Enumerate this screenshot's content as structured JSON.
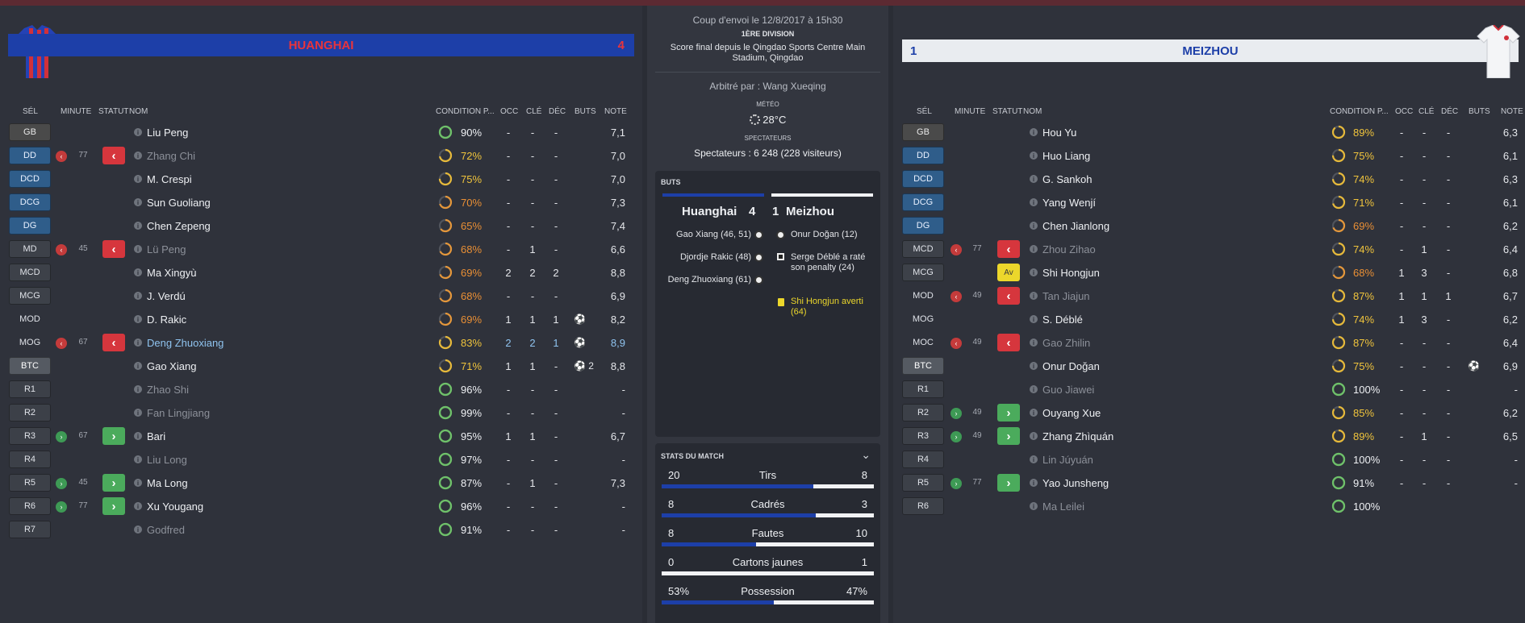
{
  "colors": {
    "home": "#1d3fa8",
    "home_text": "#e8343c",
    "away_bg": "#e9ecf0",
    "away_text": "#1d3fa8"
  },
  "home": {
    "name": "HUANGHAI",
    "score": "4",
    "headers": {
      "sel": "SÉL",
      "minute": "MINUTE",
      "statut": "STATUT",
      "nom": "NOM",
      "cond": "CONDITION P...",
      "occ": "OCC",
      "cle": "CLÉ",
      "dec": "DÉC",
      "buts": "BUTS",
      "note": "NOTE"
    },
    "players": [
      {
        "pos": "GB",
        "cls": "gk",
        "name": "Liu Peng",
        "cond": "90%",
        "cc": "w",
        "occ": "-",
        "cle": "-",
        "dec": "-",
        "buts": "",
        "note": "7,1"
      },
      {
        "pos": "DD",
        "cls": "def",
        "mark": "out",
        "minute": "77",
        "badge": "out",
        "name": "Zhang Chi",
        "nc": "dim",
        "cond": "72%",
        "cc": "y",
        "occ": "-",
        "cle": "-",
        "dec": "-",
        "buts": "",
        "note": "7,0"
      },
      {
        "pos": "DCD",
        "cls": "def",
        "name": "M. Crespi",
        "cond": "75%",
        "cc": "y",
        "occ": "-",
        "cle": "-",
        "dec": "-",
        "buts": "",
        "note": "7,0"
      },
      {
        "pos": "DCG",
        "cls": "def",
        "name": "Sun Guoliang",
        "cond": "70%",
        "cc": "o",
        "occ": "-",
        "cle": "-",
        "dec": "-",
        "buts": "",
        "note": "7,3"
      },
      {
        "pos": "DG",
        "cls": "def",
        "name": "Chen Zepeng",
        "cond": "65%",
        "cc": "o",
        "occ": "-",
        "cle": "-",
        "dec": "-",
        "buts": "",
        "note": "7,4"
      },
      {
        "pos": "MD",
        "cls": "mid",
        "mark": "out",
        "minute": "45",
        "badge": "out",
        "name": "Lü Peng",
        "nc": "dim",
        "cond": "68%",
        "cc": "o",
        "occ": "-",
        "cle": "1",
        "dec": "-",
        "buts": "",
        "note": "6,6"
      },
      {
        "pos": "MCD",
        "cls": "mid",
        "name": "Ma Xingyù",
        "cond": "69%",
        "cc": "o",
        "occ": "2",
        "cle": "2",
        "dec": "2",
        "buts": "",
        "note": "8,8"
      },
      {
        "pos": "MCG",
        "cls": "mid",
        "name": "J. Verdú",
        "cond": "68%",
        "cc": "o",
        "occ": "-",
        "cle": "-",
        "dec": "-",
        "buts": "",
        "note": "6,9"
      },
      {
        "pos": "MOD",
        "cls": "mid none",
        "name": "D. Rakic",
        "cond": "69%",
        "cc": "o",
        "occ": "1",
        "cle": "1",
        "dec": "1",
        "buts": "⚽",
        "note": "8,2"
      },
      {
        "pos": "MOG",
        "cls": "mid none",
        "mark": "out",
        "minute": "67",
        "badge": "out",
        "name": "Deng Zhuoxiang",
        "nc": "hl",
        "cond": "83%",
        "cc": "y",
        "occ": "2",
        "cle": "2",
        "dec": "1",
        "buts": "⚽",
        "note": "8,9",
        "hl": true
      },
      {
        "pos": "BTC",
        "cls": "att",
        "name": "Gao Xiang",
        "cond": "71%",
        "cc": "y",
        "occ": "1",
        "cle": "1",
        "dec": "-",
        "buts": "⚽ 2",
        "note": "8,8"
      },
      {
        "pos": "R1",
        "cls": "sub",
        "name": "Zhao Shi",
        "nc": "dim",
        "cond": "96%",
        "cc": "w",
        "occ": "-",
        "cle": "-",
        "dec": "-",
        "buts": "",
        "note": "-"
      },
      {
        "pos": "R2",
        "cls": "sub",
        "name": "Fan Lingjiang",
        "nc": "dim",
        "cond": "99%",
        "cc": "w",
        "occ": "-",
        "cle": "-",
        "dec": "-",
        "buts": "",
        "note": "-"
      },
      {
        "pos": "R3",
        "cls": "sub",
        "mark": "in",
        "minute": "67",
        "badge": "in",
        "name": "Bari",
        "cond": "95%",
        "cc": "w",
        "occ": "1",
        "cle": "1",
        "dec": "-",
        "buts": "",
        "note": "6,7"
      },
      {
        "pos": "R4",
        "cls": "sub",
        "name": "Liu Long",
        "nc": "dim",
        "cond": "97%",
        "cc": "w",
        "occ": "-",
        "cle": "-",
        "dec": "-",
        "buts": "",
        "note": "-"
      },
      {
        "pos": "R5",
        "cls": "sub",
        "mark": "in",
        "minute": "45",
        "badge": "in",
        "name": "Ma Long",
        "cond": "87%",
        "cc": "w",
        "occ": "-",
        "cle": "1",
        "dec": "-",
        "buts": "",
        "note": "7,3"
      },
      {
        "pos": "R6",
        "cls": "sub",
        "mark": "in",
        "minute": "77",
        "badge": "in",
        "name": "Xu Yougang",
        "cond": "96%",
        "cc": "w",
        "occ": "-",
        "cle": "-",
        "dec": "-",
        "buts": "",
        "note": "-"
      },
      {
        "pos": "R7",
        "cls": "sub",
        "name": "Godfred",
        "nc": "dim",
        "cond": "91%",
        "cc": "w",
        "occ": "-",
        "cle": "-",
        "dec": "-",
        "buts": "",
        "note": "-"
      }
    ]
  },
  "away": {
    "name": "MEIZHOU",
    "score": "1",
    "headers": {
      "sel": "SÉL",
      "minute": "MINUTE",
      "statut": "STATUT",
      "nom": "NOM",
      "cond": "CONDITION P...",
      "occ": "OCC",
      "cle": "CLÉ",
      "dec": "DÉC",
      "buts": "BUTS",
      "note": "NOTE"
    },
    "players": [
      {
        "pos": "GB",
        "cls": "gk",
        "name": "Hou Yu",
        "cond": "89%",
        "cc": "y",
        "occ": "-",
        "cle": "-",
        "dec": "-",
        "buts": "",
        "note": "6,3"
      },
      {
        "pos": "DD",
        "cls": "def",
        "name": "Huo Liang",
        "cond": "75%",
        "cc": "y",
        "occ": "-",
        "cle": "-",
        "dec": "-",
        "buts": "",
        "note": "6,1"
      },
      {
        "pos": "DCD",
        "cls": "def",
        "name": "G. Sankoh",
        "cond": "74%",
        "cc": "y",
        "occ": "-",
        "cle": "-",
        "dec": "-",
        "buts": "",
        "note": "6,3"
      },
      {
        "pos": "DCG",
        "cls": "def",
        "name": "Yang Wenjí",
        "cond": "71%",
        "cc": "y",
        "occ": "-",
        "cle": "-",
        "dec": "-",
        "buts": "",
        "note": "6,1"
      },
      {
        "pos": "DG",
        "cls": "def",
        "name": "Chen Jianlong",
        "cond": "69%",
        "cc": "o",
        "occ": "-",
        "cle": "-",
        "dec": "-",
        "buts": "",
        "note": "6,2"
      },
      {
        "pos": "MCD",
        "cls": "mid",
        "mark": "out",
        "minute": "77",
        "badge": "out",
        "name": "Zhou Zihao",
        "nc": "dim",
        "cond": "74%",
        "cc": "y",
        "occ": "-",
        "cle": "1",
        "dec": "-",
        "buts": "",
        "note": "6,4"
      },
      {
        "pos": "MCG",
        "cls": "mid",
        "badge": "yc",
        "badge_text": "Av",
        "name": "Shi Hongjun",
        "cond": "68%",
        "cc": "o",
        "occ": "1",
        "cle": "3",
        "dec": "-",
        "buts": "",
        "note": "6,8"
      },
      {
        "pos": "MOD",
        "cls": "mid none",
        "mark": "out",
        "minute": "49",
        "badge": "out",
        "name": "Tan Jiajun",
        "nc": "dim",
        "cond": "87%",
        "cc": "y",
        "occ": "1",
        "cle": "1",
        "dec": "1",
        "buts": "",
        "note": "6,7"
      },
      {
        "pos": "MOG",
        "cls": "mid none",
        "name": "S. Déblé",
        "cond": "74%",
        "cc": "y",
        "occ": "1",
        "cle": "3",
        "dec": "-",
        "buts": "",
        "note": "6,2"
      },
      {
        "pos": "MOC",
        "cls": "mid none",
        "mark": "out",
        "minute": "49",
        "badge": "out",
        "name": "Gao Zhilin",
        "nc": "dim",
        "cond": "87%",
        "cc": "y",
        "occ": "-",
        "cle": "-",
        "dec": "-",
        "buts": "",
        "note": "6,4"
      },
      {
        "pos": "BTC",
        "cls": "att",
        "name": "Onur Doğan",
        "cond": "75%",
        "cc": "y",
        "occ": "-",
        "cle": "-",
        "dec": "-",
        "buts": "⚽",
        "note": "6,9"
      },
      {
        "pos": "R1",
        "cls": "sub",
        "name": "Guo Jiawei",
        "nc": "dim",
        "cond": "100%",
        "cc": "w",
        "occ": "-",
        "cle": "-",
        "dec": "-",
        "buts": "",
        "note": "-"
      },
      {
        "pos": "R2",
        "cls": "sub",
        "mark": "in",
        "minute": "49",
        "badge": "in",
        "name": "Ouyang Xue",
        "cond": "85%",
        "cc": "y",
        "occ": "-",
        "cle": "-",
        "dec": "-",
        "buts": "",
        "note": "6,2"
      },
      {
        "pos": "R3",
        "cls": "sub",
        "mark": "in",
        "minute": "49",
        "badge": "in",
        "name": "Zhang Zhìquán",
        "cond": "89%",
        "cc": "y",
        "occ": "-",
        "cle": "1",
        "dec": "-",
        "buts": "",
        "note": "6,5"
      },
      {
        "pos": "R4",
        "cls": "sub",
        "name": "Lin Júyuán",
        "nc": "dim",
        "cond": "100%",
        "cc": "w",
        "occ": "-",
        "cle": "-",
        "dec": "-",
        "buts": "",
        "note": "-"
      },
      {
        "pos": "R5",
        "cls": "sub",
        "mark": "in",
        "minute": "77",
        "badge": "in",
        "name": "Yao Junsheng",
        "cond": "91%",
        "cc": "w",
        "occ": "-",
        "cle": "-",
        "dec": "-",
        "buts": "",
        "note": "-"
      },
      {
        "pos": "R6",
        "cls": "sub",
        "name": "Ma Leilei",
        "nc": "dim",
        "cond": "100%",
        "cc": "w",
        "occ": "",
        "cle": "",
        "dec": "",
        "buts": "",
        "note": ""
      }
    ]
  },
  "center": {
    "kickoff": "Coup d'envoi le 12/8/2017 à 15h30",
    "division": "1ÈRE DIVISION",
    "final_score_line": "Score final depuis le Qingdao Sports Centre Main Stadium, Qingdao",
    "referee": "Arbitré par : Wang Xueqing",
    "weather_label": "MÉTÉO",
    "weather_value": "28°C",
    "spectators_label": "SPECTATEURS",
    "spectators_value": "Spectateurs : 6 248 (228 visiteurs)",
    "goals_label": "BUTS",
    "home_name": "Huanghai",
    "home_score": "4",
    "away_score": "1",
    "away_name": "Meizhou",
    "home_events": [
      "Gao Xiang (46, 51)",
      "Djordje Rakic (48)",
      "Deng Zhuoxiang (61)"
    ],
    "away_events": [
      "Onur Doğan (12)",
      "Serge Déblé a raté son penalty (24)",
      "Shi Hongjun averti (64)"
    ],
    "stats_label": "STATS DU MATCH",
    "stats": [
      {
        "label": "Tirs",
        "home": "20",
        "away": "8",
        "home_frac": 0.714
      },
      {
        "label": "Cadrés",
        "home": "8",
        "away": "3",
        "home_frac": 0.727
      },
      {
        "label": "Fautes",
        "home": "8",
        "away": "10",
        "home_frac": 0.444
      },
      {
        "label": "Cartons jaunes",
        "home": "0",
        "away": "1",
        "home_frac": 0.0
      },
      {
        "label": "Possession",
        "home": "53%",
        "away": "47%",
        "home_frac": 0.53
      }
    ]
  }
}
